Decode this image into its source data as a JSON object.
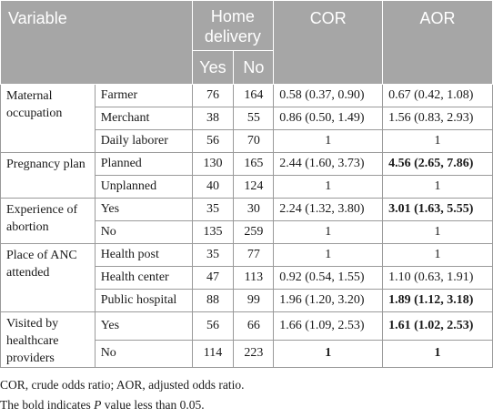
{
  "header": {
    "variable": "Variable",
    "home_delivery": "Home delivery",
    "yes": "Yes",
    "no": "No",
    "cor": "COR",
    "aor": "AOR"
  },
  "groups": [
    {
      "label": "Maternal occupation",
      "rows": [
        {
          "category": "Farmer",
          "yes": "76",
          "no": "164",
          "cor": "0.58 (0.37, 0.90)",
          "aor": "0.67 (0.42, 1.08)",
          "cor_bold": false,
          "aor_bold": false
        },
        {
          "category": "Merchant",
          "yes": "38",
          "no": "55",
          "cor": "0.86 (0.50, 1.49)",
          "aor": "1.56 (0.83, 2.93)",
          "cor_bold": false,
          "aor_bold": false
        },
        {
          "category": "Daily laborer",
          "yes": "56",
          "no": "70",
          "cor": "1",
          "aor": "1",
          "cor_bold": false,
          "aor_bold": false
        }
      ]
    },
    {
      "label": "Pregnancy plan",
      "rows": [
        {
          "category": "Planned",
          "yes": "130",
          "no": "165",
          "cor": "2.44 (1.60, 3.73)",
          "aor": "4.56 (2.65, 7.86)",
          "cor_bold": false,
          "aor_bold": true
        },
        {
          "category": "Unplanned",
          "yes": "40",
          "no": "124",
          "cor": "1",
          "aor": "1",
          "cor_bold": false,
          "aor_bold": false
        }
      ]
    },
    {
      "label": "Experience of abortion",
      "rows": [
        {
          "category": "Yes",
          "yes": "35",
          "no": "30",
          "cor": "2.24 (1.32, 3.80)",
          "aor": "3.01 (1.63, 5.55)",
          "cor_bold": false,
          "aor_bold": true
        },
        {
          "category": "No",
          "yes": "135",
          "no": "259",
          "cor": "1",
          "aor": "1",
          "cor_bold": false,
          "aor_bold": false
        }
      ]
    },
    {
      "label": "Place of ANC attended",
      "rows": [
        {
          "category": "Health post",
          "yes": "35",
          "no": "77",
          "cor": "1",
          "aor": "1",
          "cor_bold": false,
          "aor_bold": false
        },
        {
          "category": "Health center",
          "yes": "47",
          "no": "113",
          "cor": "0.92 (0.54, 1.55)",
          "aor": "1.10 (0.63, 1.91)",
          "cor_bold": false,
          "aor_bold": false
        },
        {
          "category": "Public hospital",
          "yes": "88",
          "no": "99",
          "cor": "1.96 (1.20, 3.20)",
          "aor": "1.89 (1.12, 3.18)",
          "cor_bold": false,
          "aor_bold": true
        }
      ]
    },
    {
      "label": "Visited by healthcare providers",
      "rows": [
        {
          "category": "Yes",
          "yes": "56",
          "no": "66",
          "cor": "1.66 (1.09, 2.53)",
          "aor": "1.61 (1.02, 2.53)",
          "cor_bold": false,
          "aor_bold": true
        },
        {
          "category": "No",
          "yes": "114",
          "no": "223",
          "cor": "1",
          "aor": "1",
          "cor_bold": true,
          "aor_bold": true
        }
      ]
    }
  ],
  "footnotes": {
    "abbreviations": "COR, crude odds ratio; AOR, adjusted odds ratio.",
    "bold_prefix": "The bold indicates ",
    "bold_symbol": "P",
    "bold_suffix": " value less than 0.05."
  }
}
